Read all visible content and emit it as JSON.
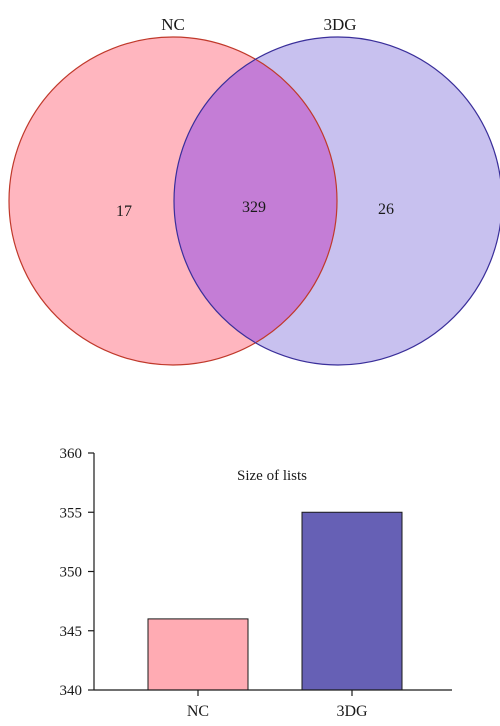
{
  "chart_data": [
    {
      "type": "venn",
      "sets": [
        {
          "name": "NC",
          "color": "#ffb6bf",
          "stroke": "#c0392b"
        },
        {
          "name": "3DG",
          "color": "#c8c1ef",
          "stroke": "#3a2f9a"
        }
      ],
      "overlap_color": "#c47dd6",
      "regions": {
        "NC_only": "17",
        "both": "329",
        "3DG_only": "26"
      }
    },
    {
      "type": "bar",
      "title": "Size of lists",
      "categories": [
        "NC",
        "3DG"
      ],
      "values": [
        346,
        355
      ],
      "colors": [
        "#ffabb3",
        "#6660b5"
      ],
      "ylim": [
        340,
        360
      ],
      "yticks": [
        "340",
        "345",
        "350",
        "355",
        "360"
      ],
      "xlabel": "",
      "ylabel": "",
      "grid": false,
      "legend": "none"
    }
  ]
}
